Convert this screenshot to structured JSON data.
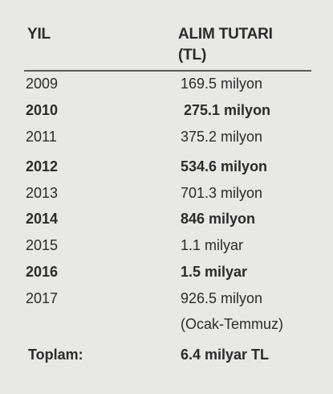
{
  "header": {
    "year_label": "YIL",
    "amount_label_line1": "ALIM TUTARI",
    "amount_label_line2": "(TL)"
  },
  "rows": [
    {
      "year": "2009",
      "amount": "169.5 milyon",
      "bold": false
    },
    {
      "year": "2010",
      "amount": "275.1 milyon",
      "bold": true
    },
    {
      "year": "2011",
      "amount": "375.2 milyon",
      "bold": false
    },
    {
      "year": "2012",
      "amount": "534.6 milyon",
      "bold": true
    },
    {
      "year": "2013",
      "amount": "701.3 milyon",
      "bold": false
    },
    {
      "year": "2014",
      "amount": "846 milyon",
      "bold": true
    },
    {
      "year": "2015",
      "amount": "1.1 milyar",
      "bold": false
    },
    {
      "year": "2016",
      "amount": "1.5 milyar",
      "bold": true
    },
    {
      "year": "2017",
      "amount": "926.5 milyon",
      "bold": false
    }
  ],
  "note": "(Ocak-Temmuz)",
  "total": {
    "label": "Toplam:",
    "value": "6.4 milyar TL"
  }
}
